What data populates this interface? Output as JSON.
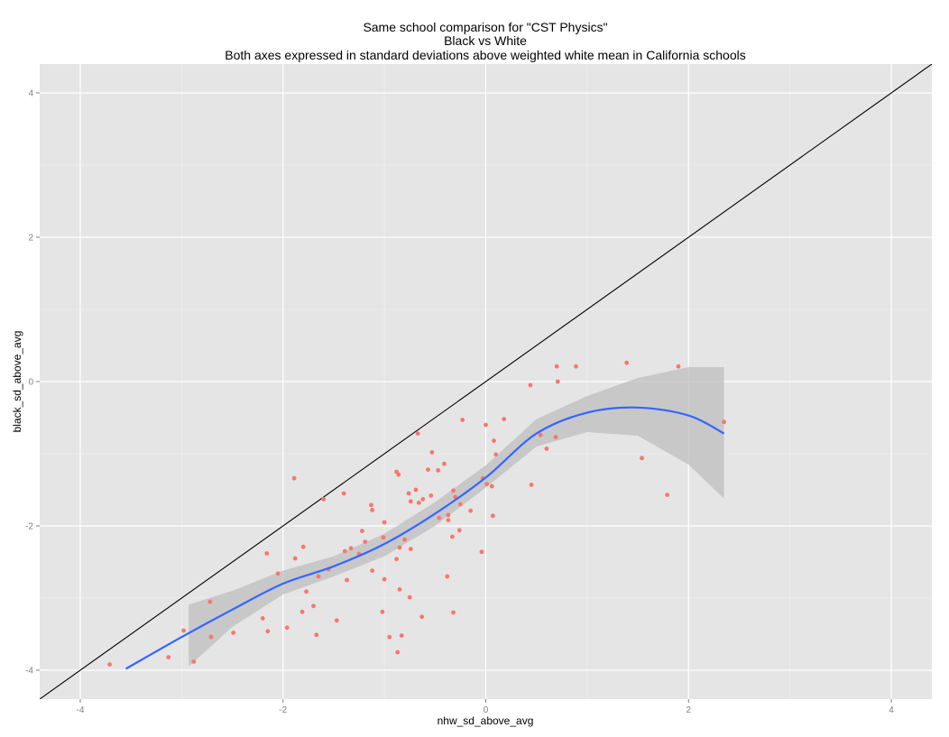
{
  "chart_data": {
    "type": "scatter",
    "title_lines": [
      "Same school comparison for \"CST Physics\"",
      "Black vs White",
      "Both axes expressed in standard deviations above weighted white mean in California schools"
    ],
    "xlabel": "nhw_sd_above_avg",
    "ylabel": "black_sd_above_avg",
    "xlim": [
      -4.4,
      4.4
    ],
    "ylim": [
      -4.4,
      4.4
    ],
    "xticks": [
      -4,
      -2,
      0,
      2,
      4
    ],
    "yticks": [
      -4,
      -2,
      0,
      2,
      4
    ],
    "xtick_labels": [
      "-4",
      "-2",
      "0",
      "2",
      "4"
    ],
    "ytick_labels": [
      "-4",
      "-2",
      "0",
      "2",
      "4"
    ],
    "grid": true,
    "panel_background": "#e5e5e5",
    "point_color": "#f8766d",
    "smooth_color": "#3366ff",
    "ribbon_color": "#bdbdbd",
    "reference_line": {
      "slope": 1,
      "intercept": 0,
      "color": "#000000"
    },
    "points": [
      {
        "x": -3.71,
        "y": -3.92
      },
      {
        "x": -3.13,
        "y": -3.82
      },
      {
        "x": -2.98,
        "y": -3.45
      },
      {
        "x": -2.88,
        "y": -3.88
      },
      {
        "x": -2.72,
        "y": -3.05
      },
      {
        "x": -2.71,
        "y": -3.54
      },
      {
        "x": -2.49,
        "y": -3.48
      },
      {
        "x": -2.2,
        "y": -3.28
      },
      {
        "x": -2.16,
        "y": -2.38
      },
      {
        "x": -2.15,
        "y": -3.46
      },
      {
        "x": -2.05,
        "y": -2.66
      },
      {
        "x": -1.96,
        "y": -3.41
      },
      {
        "x": -1.89,
        "y": -1.34
      },
      {
        "x": -1.88,
        "y": -2.45
      },
      {
        "x": -1.81,
        "y": -3.19
      },
      {
        "x": -1.8,
        "y": -2.29
      },
      {
        "x": -1.77,
        "y": -2.91
      },
      {
        "x": -1.7,
        "y": -3.11
      },
      {
        "x": -1.67,
        "y": -3.51
      },
      {
        "x": -1.65,
        "y": -2.7
      },
      {
        "x": -1.6,
        "y": -1.63
      },
      {
        "x": -1.55,
        "y": -2.6
      },
      {
        "x": -1.47,
        "y": -3.31
      },
      {
        "x": -1.4,
        "y": -1.55
      },
      {
        "x": -1.39,
        "y": -2.35
      },
      {
        "x": -1.37,
        "y": -2.75
      },
      {
        "x": -1.33,
        "y": -2.31
      },
      {
        "x": -1.25,
        "y": -2.39
      },
      {
        "x": -1.22,
        "y": -2.07
      },
      {
        "x": -1.19,
        "y": -2.22
      },
      {
        "x": -1.13,
        "y": -1.71
      },
      {
        "x": -1.12,
        "y": -1.78
      },
      {
        "x": -1.12,
        "y": -2.62
      },
      {
        "x": -1.02,
        "y": -3.19
      },
      {
        "x": -1.01,
        "y": -2.16
      },
      {
        "x": -1.0,
        "y": -1.95
      },
      {
        "x": -1.0,
        "y": -2.74
      },
      {
        "x": -0.95,
        "y": -3.54
      },
      {
        "x": -0.88,
        "y": -1.25
      },
      {
        "x": -0.88,
        "y": -2.46
      },
      {
        "x": -0.87,
        "y": -3.75
      },
      {
        "x": -0.86,
        "y": -1.29
      },
      {
        "x": -0.85,
        "y": -2.88
      },
      {
        "x": -0.85,
        "y": -2.3
      },
      {
        "x": -0.83,
        "y": -3.52
      },
      {
        "x": -0.8,
        "y": -2.19
      },
      {
        "x": -0.76,
        "y": -1.55
      },
      {
        "x": -0.75,
        "y": -2.99
      },
      {
        "x": -0.74,
        "y": -2.32
      },
      {
        "x": -0.74,
        "y": -1.66
      },
      {
        "x": -0.69,
        "y": -1.5
      },
      {
        "x": -0.67,
        "y": -0.72
      },
      {
        "x": -0.66,
        "y": -1.68
      },
      {
        "x": -0.63,
        "y": -3.26
      },
      {
        "x": -0.62,
        "y": -1.63
      },
      {
        "x": -0.57,
        "y": -1.22
      },
      {
        "x": -0.54,
        "y": -1.58
      },
      {
        "x": -0.53,
        "y": -0.98
      },
      {
        "x": -0.47,
        "y": -1.23
      },
      {
        "x": -0.46,
        "y": -1.89
      },
      {
        "x": -0.41,
        "y": -1.14
      },
      {
        "x": -0.38,
        "y": -2.7
      },
      {
        "x": -0.37,
        "y": -1.85
      },
      {
        "x": -0.37,
        "y": -1.92
      },
      {
        "x": -0.33,
        "y": -2.15
      },
      {
        "x": -0.32,
        "y": -3.2
      },
      {
        "x": -0.32,
        "y": -1.51
      },
      {
        "x": -0.3,
        "y": -1.6
      },
      {
        "x": -0.26,
        "y": -2.06
      },
      {
        "x": -0.25,
        "y": -1.7
      },
      {
        "x": -0.23,
        "y": -0.53
      },
      {
        "x": -0.15,
        "y": -1.79
      },
      {
        "x": -0.04,
        "y": -2.36
      },
      {
        "x": -0.03,
        "y": -1.34
      },
      {
        "x": 0.0,
        "y": -0.6
      },
      {
        "x": 0.01,
        "y": -1.42
      },
      {
        "x": 0.06,
        "y": -1.45
      },
      {
        "x": 0.07,
        "y": -1.86
      },
      {
        "x": 0.08,
        "y": -0.82
      },
      {
        "x": 0.1,
        "y": -1.01
      },
      {
        "x": 0.18,
        "y": -0.52
      },
      {
        "x": 0.44,
        "y": -0.05
      },
      {
        "x": 0.45,
        "y": -1.43
      },
      {
        "x": 0.54,
        "y": -0.74
      },
      {
        "x": 0.6,
        "y": -0.93
      },
      {
        "x": 0.69,
        "y": -0.77
      },
      {
        "x": 0.7,
        "y": 0.21
      },
      {
        "x": 0.71,
        "y": 0.0
      },
      {
        "x": 0.89,
        "y": 0.21
      },
      {
        "x": 1.39,
        "y": 0.26
      },
      {
        "x": 1.54,
        "y": -1.06
      },
      {
        "x": 1.79,
        "y": -1.57
      },
      {
        "x": 1.9,
        "y": 0.21
      },
      {
        "x": 2.35,
        "y": -0.56
      }
    ],
    "smooth": {
      "x": [
        -3.55,
        -3.0,
        -2.5,
        -2.0,
        -1.5,
        -1.0,
        -0.5,
        0.0,
        0.5,
        1.0,
        1.5,
        2.0,
        2.35
      ],
      "y": [
        -3.98,
        -3.54,
        -3.16,
        -2.8,
        -2.56,
        -2.25,
        -1.83,
        -1.33,
        -0.72,
        -0.43,
        -0.36,
        -0.47,
        -0.72
      ],
      "ribbon_x": [
        -2.93,
        -2.5,
        -2.0,
        -1.5,
        -1.0,
        -0.5,
        0.0,
        0.5,
        1.0,
        1.5,
        2.0,
        2.35
      ],
      "ribbon_lower": [
        -3.95,
        -3.4,
        -2.95,
        -2.7,
        -2.42,
        -2.0,
        -1.47,
        -0.9,
        -0.7,
        -0.75,
        -1.15,
        -1.62
      ],
      "ribbon_upper": [
        -3.09,
        -2.9,
        -2.62,
        -2.42,
        -2.11,
        -1.67,
        -1.16,
        -0.52,
        -0.2,
        0.05,
        0.2,
        0.2
      ]
    }
  }
}
